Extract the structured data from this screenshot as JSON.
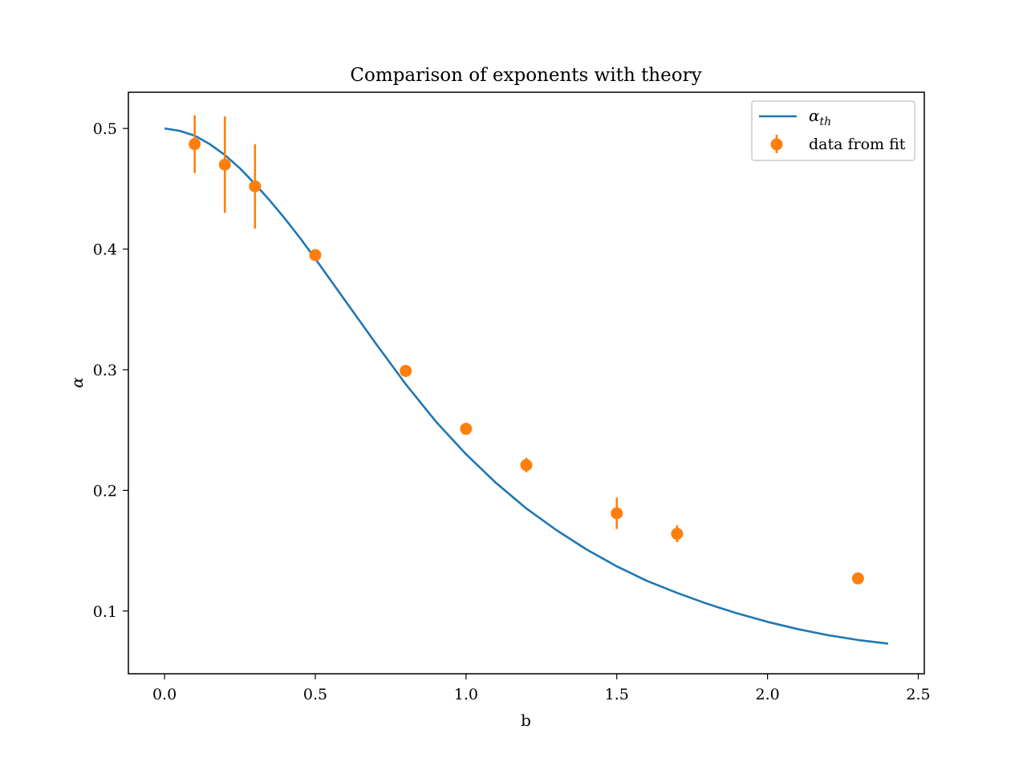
{
  "chart_data": {
    "type": "scatter",
    "title": "Comparison of exponents with theory",
    "xlabel": "b",
    "ylabel": "α",
    "xlim": [
      -0.12,
      2.52
    ],
    "ylim": [
      0.048,
      0.53
    ],
    "xticks": [
      0.0,
      0.5,
      1.0,
      1.5,
      2.0,
      2.5
    ],
    "xtick_labels": [
      "0.0",
      "0.5",
      "1.0",
      "1.5",
      "2.0",
      "2.5"
    ],
    "yticks": [
      0.1,
      0.2,
      0.3,
      0.4,
      0.5
    ],
    "ytick_labels": [
      "0.1",
      "0.2",
      "0.3",
      "0.4",
      "0.5"
    ],
    "grid": false,
    "legend_position": "top-right",
    "series": [
      {
        "name": "α",
        "name_subscript": "th",
        "kind": "line",
        "color": "#1f77b4",
        "x": [
          0.0,
          0.05,
          0.1,
          0.15,
          0.2,
          0.25,
          0.3,
          0.35,
          0.4,
          0.45,
          0.5,
          0.6,
          0.7,
          0.8,
          0.9,
          1.0,
          1.1,
          1.2,
          1.3,
          1.4,
          1.5,
          1.6,
          1.7,
          1.8,
          1.9,
          2.0,
          2.1,
          2.2,
          2.3,
          2.4
        ],
        "y": [
          0.5,
          0.498,
          0.494,
          0.487,
          0.478,
          0.467,
          0.454,
          0.44,
          0.425,
          0.409,
          0.392,
          0.357,
          0.322,
          0.288,
          0.257,
          0.23,
          0.206,
          0.185,
          0.167,
          0.151,
          0.137,
          0.125,
          0.115,
          0.106,
          0.098,
          0.091,
          0.085,
          0.08,
          0.076,
          0.073
        ]
      },
      {
        "name": "data from fit",
        "kind": "errorbar",
        "color": "#ff7f0e",
        "x": [
          0.1,
          0.2,
          0.3,
          0.5,
          0.8,
          1.0,
          1.2,
          1.5,
          1.7,
          2.3
        ],
        "y": [
          0.487,
          0.47,
          0.452,
          0.395,
          0.299,
          0.251,
          0.221,
          0.181,
          0.164,
          0.127
        ],
        "yerr": [
          0.024,
          0.04,
          0.035,
          0.003,
          0.005,
          0.003,
          0.006,
          0.013,
          0.007,
          0.002
        ]
      }
    ]
  }
}
